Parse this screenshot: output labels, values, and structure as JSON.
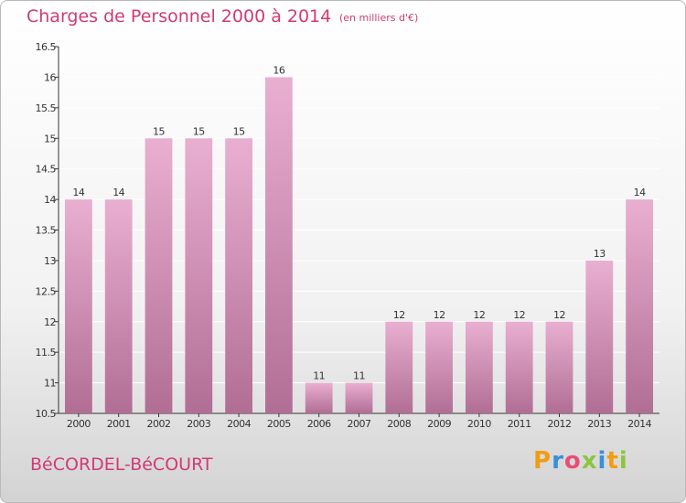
{
  "header": {
    "title": "Charges de Personnel 2000 à 2014",
    "subtitle": "(en milliers d'€)"
  },
  "footer": {
    "commune": "BéCORDEL-BéCOURT",
    "logo_text": "Proxiti",
    "logo_colors": [
      "#f39c12",
      "#3a8fd6",
      "#e94e77",
      "#8cc63f",
      "#3a8fd6",
      "#f39c12",
      "#8cc63f"
    ]
  },
  "colors": {
    "bar_light": "#e9afd1",
    "bar_dark": "#b16e95",
    "text_accent": "#d23a74"
  },
  "chart_data": {
    "type": "bar",
    "categories": [
      "2000",
      "2001",
      "2002",
      "2003",
      "2004",
      "2005",
      "2006",
      "2007",
      "2008",
      "2009",
      "2010",
      "2011",
      "2012",
      "2013",
      "2014"
    ],
    "values": [
      14,
      14,
      15,
      15,
      15,
      16,
      11,
      11,
      12,
      12,
      12,
      12,
      12,
      13,
      14
    ],
    "data_labels": [
      "14",
      "14",
      "15",
      "15",
      "15",
      "16",
      "11",
      "11",
      "12",
      "12",
      "12",
      "12",
      "12",
      "13",
      "14"
    ],
    "title": "Charges de Personnel 2000 à 2014",
    "subtitle": "(en milliers d'€)",
    "xlabel": "",
    "ylabel": "",
    "ylim": [
      10.5,
      16.5
    ],
    "yticks": [
      10.5,
      11,
      11.5,
      12,
      12.5,
      13,
      13.5,
      14,
      14.5,
      15,
      15.5,
      16,
      16.5
    ],
    "ytick_labels": [
      "10.5",
      "11",
      "11.5",
      "12",
      "12.5",
      "13",
      "13.5",
      "14",
      "14.5",
      "15",
      "15.5",
      "16",
      "16.5"
    ],
    "grid": true,
    "legend": "none"
  }
}
